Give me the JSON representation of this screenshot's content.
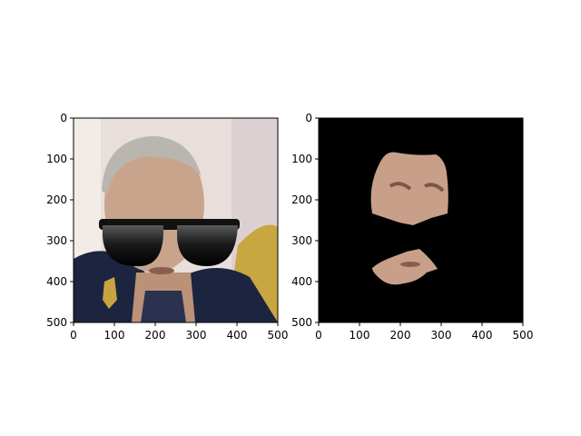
{
  "chart_data": [
    {
      "type": "image",
      "xlim": [
        0,
        500
      ],
      "ylim": [
        500,
        0
      ],
      "xticks": [
        0,
        100,
        200,
        300,
        400,
        500
      ],
      "yticks": [
        0,
        100,
        200,
        300,
        400,
        500
      ],
      "xticklabels": [
        "0",
        "100",
        "200",
        "300",
        "400",
        "500"
      ],
      "yticklabels": [
        "0",
        "100",
        "200",
        "300",
        "400",
        "500"
      ],
      "title": "",
      "xlabel": "",
      "ylabel": "",
      "content": "photo of an elderly man in uniform wearing added black sunglasses",
      "colors": {
        "background": "#e8dedc",
        "uniform": "#1c2440",
        "skin": "#c9a48c",
        "hair": "#b9b6b0",
        "sunglasses": "#111111"
      }
    },
    {
      "type": "image",
      "xlim": [
        0,
        500
      ],
      "ylim": [
        500,
        0
      ],
      "xticks": [
        0,
        100,
        200,
        300,
        400,
        500
      ],
      "yticks": [
        0,
        100,
        200,
        300,
        400,
        500
      ],
      "xticklabels": [
        "0",
        "100",
        "200",
        "300",
        "400",
        "500"
      ],
      "yticklabels": [
        "0",
        "100",
        "200",
        "300",
        "400",
        "500"
      ],
      "title": "",
      "xlabel": "",
      "ylabel": "",
      "content": "segmented face skin regions on black background",
      "colors": {
        "background": "#000000",
        "skin": "#c8a08a"
      }
    }
  ]
}
